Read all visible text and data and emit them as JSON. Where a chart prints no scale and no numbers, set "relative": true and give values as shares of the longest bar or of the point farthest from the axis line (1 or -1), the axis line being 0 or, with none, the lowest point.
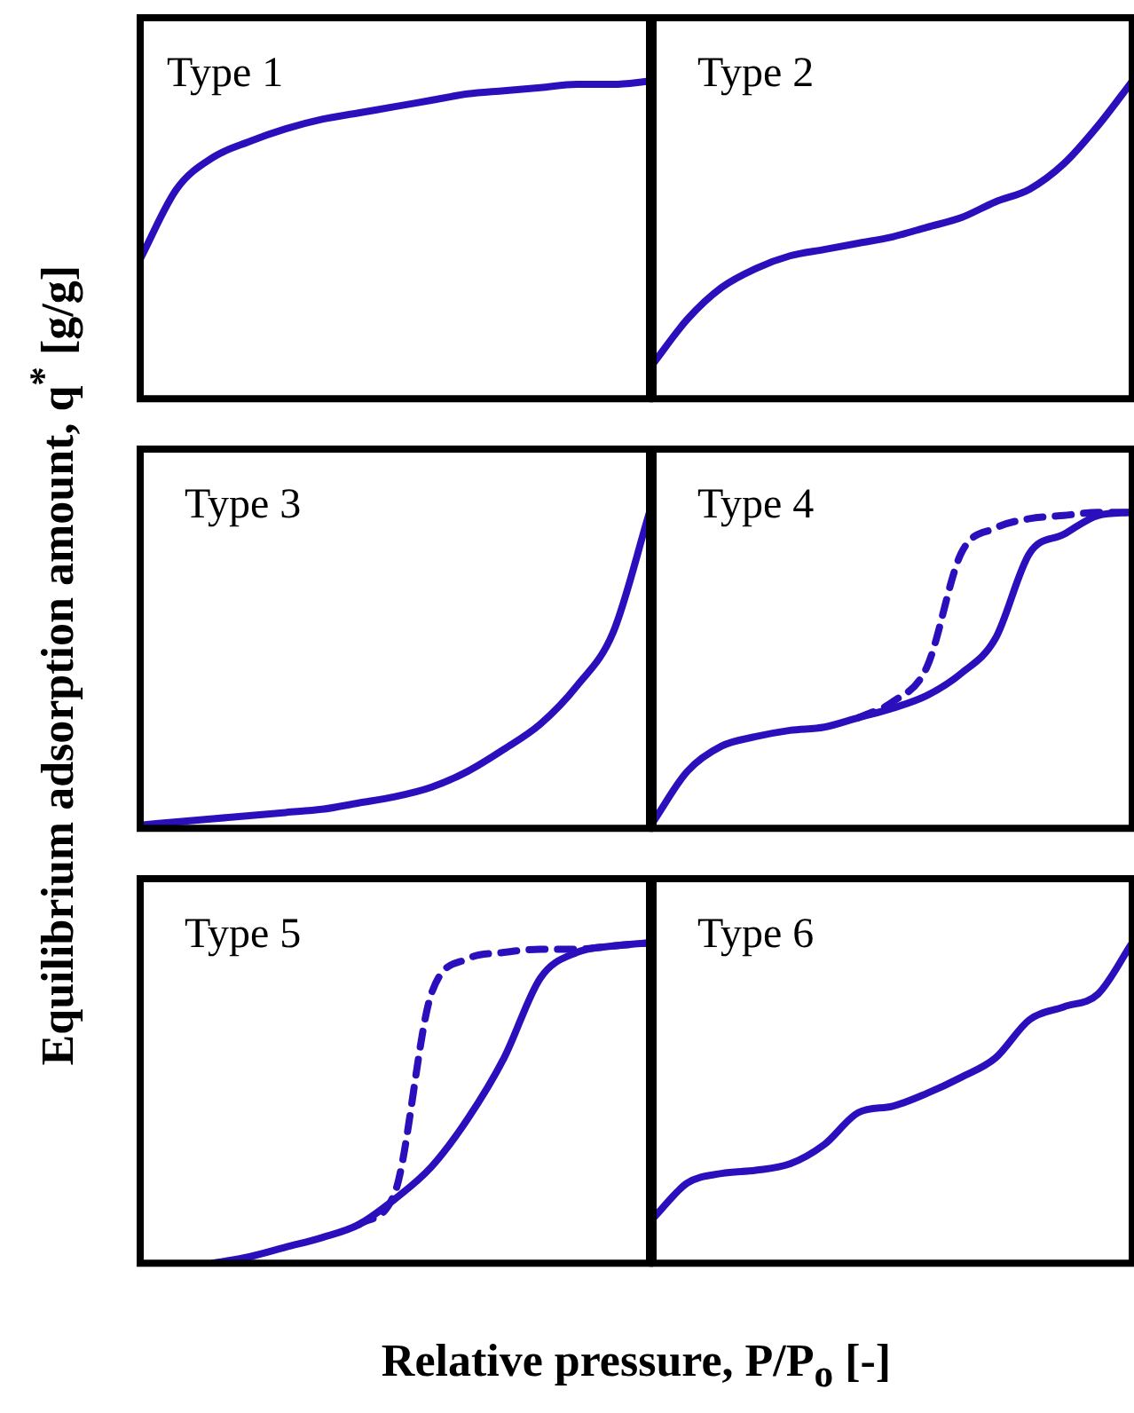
{
  "chart_data": [
    {
      "type": "line",
      "title": "Type 1",
      "ylabel": "Equilibrium adsorption amount, q$^{*}$ [g/g]",
      "relative": true,
      "legend": false,
      "marker": "none",
      "categories": [
        null,
        null,
        null,
        null,
        null,
        null,
        null,
        null,
        null,
        null,
        null,
        null,
        null,
        null,
        null
      ],
      "series": [
        {
          "color": "#2b0fbd",
          "values": [
            0.44,
            0.66,
            0.76,
            0.81,
            0.85,
            0.88,
            0.9,
            0.92,
            0.94,
            0.96,
            0.97,
            0.98,
            0.99,
            0.99,
            1
          ]
        }
      ]
    },
    {
      "type": "line",
      "title": "Type 2",
      "relative": true,
      "legend": false,
      "marker": "none",
      "categories": [
        null,
        null,
        null,
        null,
        null,
        null,
        null,
        null,
        null,
        null,
        null,
        null,
        null,
        null,
        null
      ],
      "series": [
        {
          "color": "#2b0fbd",
          "values": [
            0.11,
            0.25,
            0.35,
            0.41,
            0.45,
            0.47,
            0.49,
            0.51,
            0.54,
            0.57,
            0.62,
            0.66,
            0.74,
            0.86,
            1
          ]
        }
      ]
    },
    {
      "type": "line",
      "title": "Type 3",
      "relative": true,
      "legend": false,
      "marker": "none",
      "categories": [
        null,
        null,
        null,
        null,
        null,
        null,
        null,
        null,
        null,
        null,
        null,
        null,
        null,
        null,
        null
      ],
      "series": [
        {
          "color": "#2b0fbd",
          "values": [
            0.01,
            0.02,
            0.03,
            0.04,
            0.05,
            0.06,
            0.08,
            0.1,
            0.13,
            0.18,
            0.25,
            0.33,
            0.45,
            0.62,
            1
          ]
        }
      ]
    },
    {
      "type": "line",
      "title": "Type 4",
      "relative": true,
      "legend": false,
      "marker": "none",
      "categories": [
        null,
        null,
        null,
        null,
        null,
        null,
        null,
        null,
        null,
        null,
        null,
        null,
        null,
        null,
        null
      ],
      "series": [
        {
          "color": "#2b0fbd",
          "values": [
            0.02,
            0.18,
            0.26,
            0.29,
            0.31,
            0.32,
            0.35,
            0.38,
            0.42,
            0.49,
            0.6,
            0.87,
            0.93,
            0.99,
            1
          ]
        },
        {
          "color": "#2b0fbd",
          "line_style": "dashed",
          "values": [
            null,
            null,
            null,
            null,
            null,
            null,
            0.35,
            0.4,
            0.51,
            0.87,
            0.95,
            0.98,
            0.99,
            1,
            1
          ]
        }
      ]
    },
    {
      "type": "line",
      "title": "Type 5",
      "xlabel": "Relative pressure, P/P$_{o}$ [-]",
      "relative": true,
      "legend": false,
      "marker": "none",
      "categories": [
        null,
        null,
        null,
        null,
        null,
        null,
        null,
        null,
        null,
        null,
        null,
        null,
        null,
        null,
        null
      ],
      "series": [
        {
          "color": "#2b0fbd",
          "values": [
            null,
            null,
            0,
            0.02,
            0.05,
            0.08,
            0.12,
            0.2,
            0.3,
            0.45,
            0.64,
            0.89,
            0.97,
            0.99,
            1
          ]
        },
        {
          "color": "#2b0fbd",
          "line_style": "dashed",
          "values": [
            null,
            null,
            null,
            null,
            null,
            null,
            0.12,
            0.22,
            0.84,
            0.95,
            0.97,
            0.98,
            0.98,
            0.99,
            1
          ]
        }
      ]
    },
    {
      "type": "line",
      "title": "Type 6",
      "relative": true,
      "legend": false,
      "marker": "none",
      "categories": [
        null,
        null,
        null,
        null,
        null,
        null,
        null,
        null,
        null,
        null,
        null,
        null,
        null,
        null,
        null
      ],
      "series": [
        {
          "color": "#2b0fbd",
          "values": [
            0.14,
            0.25,
            0.28,
            0.29,
            0.31,
            0.37,
            0.47,
            0.49,
            0.53,
            0.58,
            0.64,
            0.76,
            0.8,
            0.84,
            1
          ]
        }
      ]
    }
  ]
}
